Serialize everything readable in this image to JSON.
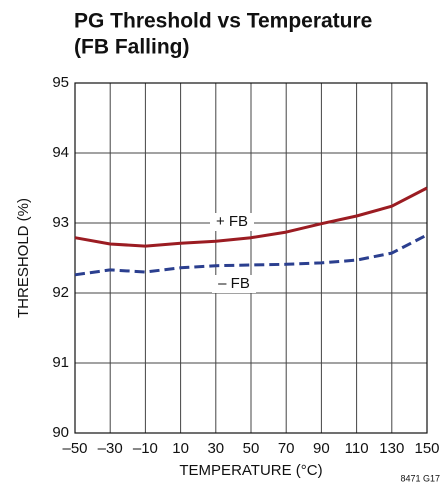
{
  "chart_data": {
    "type": "line",
    "title": [
      "PG Threshold vs Temperature",
      "(FB Falling)"
    ],
    "x_label": "TEMPERATURE (°C)",
    "y_label": "THRESHOLD (%)",
    "note": "8471 G17",
    "x": [
      -50,
      -30,
      -10,
      10,
      30,
      50,
      70,
      90,
      110,
      130,
      150
    ],
    "series": [
      {
        "name": "+ FB",
        "color": "#9b1c22",
        "dashed": false,
        "values": [
          92.79,
          92.7,
          92.67,
          92.71,
          92.74,
          92.79,
          92.87,
          92.99,
          93.1,
          93.24,
          93.5
        ]
      },
      {
        "name": "– FB",
        "color": "#2b3f8f",
        "dashed": true,
        "values": [
          92.26,
          92.33,
          92.3,
          92.36,
          92.39,
          92.4,
          92.41,
          92.43,
          92.47,
          92.57,
          92.83
        ]
      }
    ],
    "xlim": [
      -50,
      150
    ],
    "xticks": [
      {
        "value": -50,
        "label": "–50"
      },
      {
        "value": -30,
        "label": "–30"
      },
      {
        "value": -10,
        "label": "–10"
      },
      10,
      30,
      50,
      70,
      90,
      110,
      130,
      150
    ],
    "ylim": [
      90,
      95
    ],
    "yticks": [
      90,
      91,
      92,
      93,
      94,
      95
    ],
    "grid": true
  }
}
